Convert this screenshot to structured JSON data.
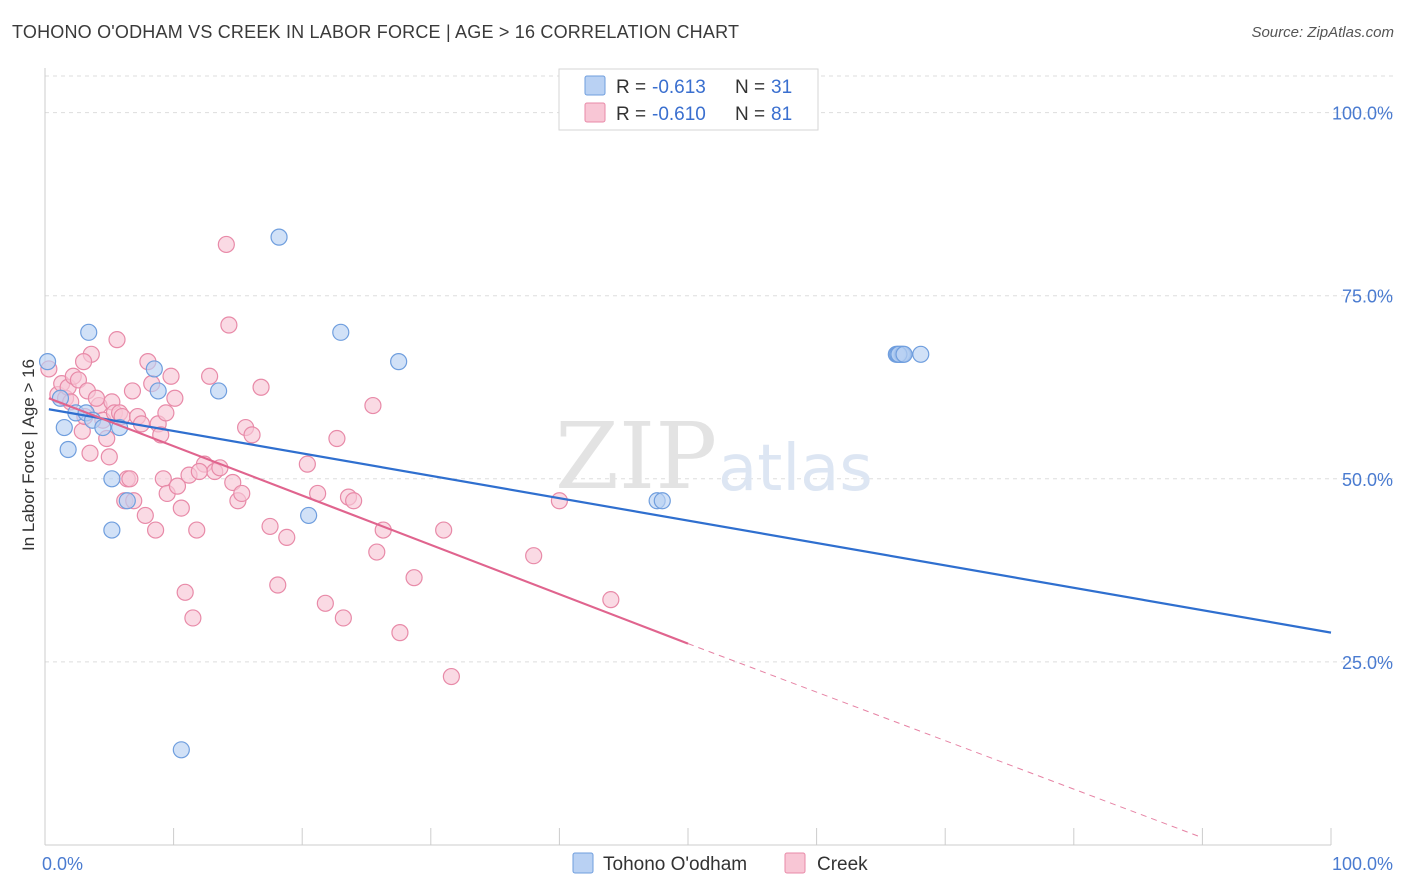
{
  "header": {
    "title": "TOHONO O'ODHAM VS CREEK IN LABOR FORCE | AGE > 16 CORRELATION CHART",
    "source": "Source: ZipAtlas.com"
  },
  "watermark": {
    "zip": "ZIP",
    "atlas": "atlas"
  },
  "legend": {
    "rows": [
      {
        "r_label": "R =",
        "r_value": "-0.613",
        "n_label": "N =",
        "n_value": "31"
      },
      {
        "r_label": "R =",
        "r_value": "-0.610",
        "n_label": "N =",
        "n_value": "81"
      }
    ]
  },
  "bottom_legend": [
    "Tohono O'odham",
    "Creek"
  ],
  "colors": {
    "tohono_fill": "#b9d1f3",
    "tohono_stroke": "#6f9ede",
    "tohono_line": "#2f6fcf",
    "creek_fill": "#f8c6d5",
    "creek_stroke": "#e88aa8",
    "creek_line": "#e0648e",
    "grid": "#dddddd",
    "tick": "#4a7bd0"
  },
  "chart_data": {
    "type": "scatter",
    "title": "TOHONO O'ODHAM VS CREEK IN LABOR FORCE | AGE > 16 CORRELATION CHART",
    "xlabel": "",
    "ylabel": "In Labor Force | Age > 16",
    "xlim": [
      0,
      100
    ],
    "ylim": [
      0,
      105
    ],
    "x_tick_labels": [
      "0.0%",
      "100.0%"
    ],
    "y_ticks": [
      25,
      50,
      75,
      100
    ],
    "y_tick_labels": [
      "25.0%",
      "50.0%",
      "75.0%",
      "100.0%"
    ],
    "grid": true,
    "legend_placement": "top-center",
    "series": [
      {
        "name": "Tohono O'odham",
        "r": -0.613,
        "n": 31,
        "points": [
          [
            0.2,
            66
          ],
          [
            1.2,
            61
          ],
          [
            1.5,
            57
          ],
          [
            1.8,
            54
          ],
          [
            2.4,
            59
          ],
          [
            3.2,
            59
          ],
          [
            3.4,
            70
          ],
          [
            3.7,
            58
          ],
          [
            4.5,
            57
          ],
          [
            5.2,
            50
          ],
          [
            5.2,
            43
          ],
          [
            5.8,
            57
          ],
          [
            6.4,
            47
          ],
          [
            8.5,
            65
          ],
          [
            8.8,
            62
          ],
          [
            10.6,
            13
          ],
          [
            13.5,
            62
          ],
          [
            18.2,
            83
          ],
          [
            20.5,
            45
          ],
          [
            23.0,
            70
          ],
          [
            27.5,
            66
          ],
          [
            47.6,
            47
          ],
          [
            48.0,
            47
          ],
          [
            68.1,
            67
          ],
          [
            66.5,
            67
          ],
          [
            66.2,
            67
          ],
          [
            66.6,
            67
          ],
          [
            66.3,
            67
          ],
          [
            66.7,
            67
          ],
          [
            66.4,
            67
          ],
          [
            66.8,
            67
          ]
        ],
        "trend": {
          "x0": 0.3,
          "y0": 59.5,
          "x1": 100,
          "y1": 29
        }
      },
      {
        "name": "Creek",
        "r": -0.61,
        "n": 81,
        "points": [
          [
            0.3,
            65
          ],
          [
            1.0,
            61.5
          ],
          [
            1.3,
            63
          ],
          [
            1.6,
            61
          ],
          [
            1.8,
            62.5
          ],
          [
            2.2,
            64
          ],
          [
            2.6,
            63.5
          ],
          [
            2.9,
            56.5
          ],
          [
            3.1,
            58.5
          ],
          [
            3.3,
            62
          ],
          [
            3.5,
            53.5
          ],
          [
            3.6,
            67
          ],
          [
            4.2,
            60
          ],
          [
            4.5,
            58
          ],
          [
            4.8,
            55.5
          ],
          [
            5.0,
            53
          ],
          [
            5.2,
            60.5
          ],
          [
            5.4,
            59
          ],
          [
            5.6,
            69
          ],
          [
            5.8,
            59
          ],
          [
            6.0,
            58.5
          ],
          [
            6.2,
            47
          ],
          [
            6.4,
            50
          ],
          [
            6.6,
            50
          ],
          [
            6.9,
            47
          ],
          [
            7.2,
            58.5
          ],
          [
            7.5,
            57.5
          ],
          [
            7.8,
            45
          ],
          [
            8.0,
            66
          ],
          [
            8.3,
            63
          ],
          [
            8.6,
            43
          ],
          [
            8.8,
            57.5
          ],
          [
            9.0,
            56
          ],
          [
            9.2,
            50
          ],
          [
            9.5,
            48
          ],
          [
            9.8,
            64
          ],
          [
            10.1,
            61
          ],
          [
            10.3,
            49
          ],
          [
            10.6,
            46
          ],
          [
            10.9,
            34.5
          ],
          [
            11.2,
            50.5
          ],
          [
            11.5,
            31
          ],
          [
            11.8,
            43
          ],
          [
            12.4,
            52
          ],
          [
            12.8,
            64
          ],
          [
            13.2,
            51
          ],
          [
            13.6,
            51.5
          ],
          [
            14.1,
            82
          ],
          [
            14.3,
            71
          ],
          [
            14.6,
            49.5
          ],
          [
            15.0,
            47
          ],
          [
            15.3,
            48
          ],
          [
            15.6,
            57
          ],
          [
            16.1,
            56
          ],
          [
            16.8,
            62.5
          ],
          [
            17.5,
            43.5
          ],
          [
            18.1,
            35.5
          ],
          [
            18.8,
            42
          ],
          [
            20.4,
            52
          ],
          [
            21.2,
            48
          ],
          [
            21.8,
            33
          ],
          [
            22.7,
            55.5
          ],
          [
            23.2,
            31
          ],
          [
            23.6,
            47.5
          ],
          [
            24.0,
            47
          ],
          [
            25.5,
            60
          ],
          [
            25.8,
            40
          ],
          [
            26.3,
            43
          ],
          [
            27.6,
            29
          ],
          [
            28.7,
            36.5
          ],
          [
            31.0,
            43
          ],
          [
            31.6,
            23
          ],
          [
            38.0,
            39.5
          ],
          [
            40.0,
            47
          ],
          [
            44.0,
            33.5
          ],
          [
            3.0,
            66
          ],
          [
            4.0,
            61
          ],
          [
            2.0,
            60.5
          ],
          [
            6.8,
            62
          ],
          [
            9.4,
            59
          ],
          [
            12.0,
            51
          ]
        ],
        "trend": {
          "x0": 0.3,
          "y0": 61,
          "x1": 50,
          "y1": 27.5
        },
        "trend_extension": {
          "x0": 50,
          "y0": 27.5,
          "x1": 90,
          "y1": 1
        }
      }
    ]
  }
}
